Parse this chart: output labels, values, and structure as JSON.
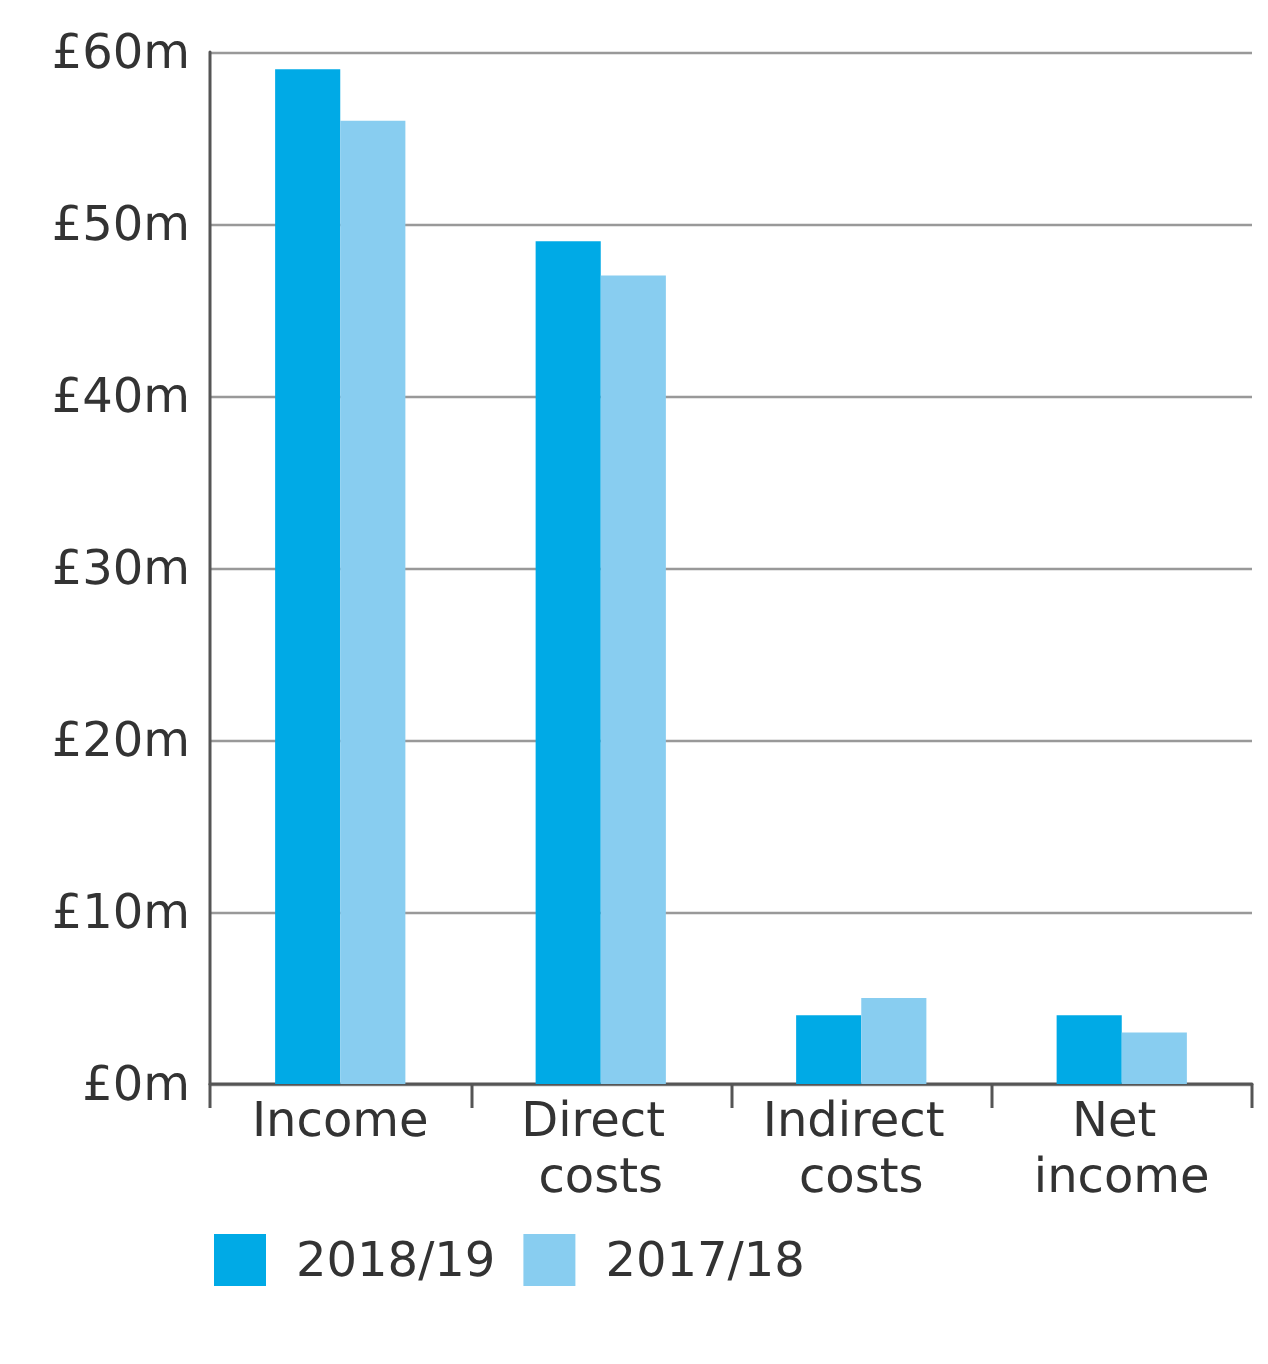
{
  "chart_data": {
    "type": "bar",
    "categories": [
      "Income",
      "Direct costs",
      "Indirect costs",
      "Net income"
    ],
    "series": [
      {
        "name": "2018/19",
        "color": "#00aae6",
        "values": [
          59,
          49,
          4,
          4
        ]
      },
      {
        "name": "2017/18",
        "color": "#88cdf0",
        "values": [
          56,
          47,
          5,
          3
        ]
      }
    ],
    "ylim": [
      0,
      60
    ],
    "yticks": [
      {
        "value": 0,
        "label": "£0m"
      },
      {
        "value": 10,
        "label": "£10m"
      },
      {
        "value": 20,
        "label": "£20m"
      },
      {
        "value": 30,
        "label": "£30m"
      },
      {
        "value": 40,
        "label": "£40m"
      },
      {
        "value": 50,
        "label": "£50m"
      },
      {
        "value": 60,
        "label": "£60m"
      }
    ],
    "grid": "y",
    "legend": "bottom left"
  }
}
